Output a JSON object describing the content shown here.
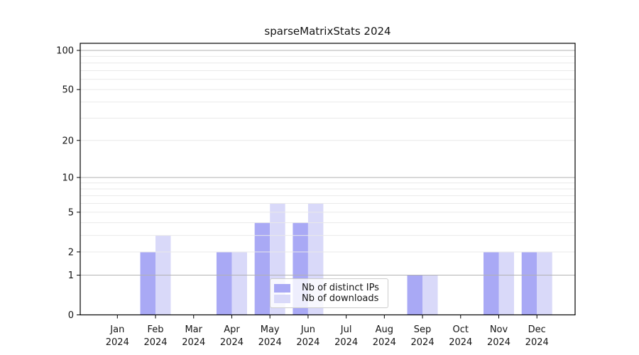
{
  "title": "sparseMatrixStats 2024",
  "chart_data": {
    "type": "bar",
    "title": "sparseMatrixStats 2024",
    "y_scale": "log10(1+x)",
    "categories": [
      "Jan",
      "Feb",
      "Mar",
      "Apr",
      "May",
      "Jun",
      "Jul",
      "Aug",
      "Sep",
      "Oct",
      "Nov",
      "Dec"
    ],
    "category_year": "2024",
    "series": [
      {
        "name": "Nb of distinct IPs",
        "color": "#a9a9f5",
        "values": [
          0,
          2,
          0,
          2,
          4,
          4,
          0,
          0,
          1,
          0,
          2,
          2
        ]
      },
      {
        "name": "Nb of downloads",
        "color": "#d9d9f9",
        "values": [
          0,
          3,
          0,
          2,
          6,
          6,
          0,
          0,
          1,
          0,
          2,
          2
        ]
      }
    ],
    "y_ticks": [
      0,
      1,
      2,
      5,
      10,
      20,
      50,
      100
    ],
    "y_major_grid": [
      1,
      10,
      100
    ],
    "y_minor_grid": [
      2,
      3,
      4,
      5,
      6,
      7,
      8,
      9,
      20,
      30,
      40,
      50,
      60,
      70,
      80,
      90
    ],
    "ylim": [
      0,
      113
    ],
    "grid": true,
    "legend_position": "lower center"
  },
  "colors": {
    "background": "#ffffff",
    "axis": "#000000",
    "tick_label": "#141414",
    "major_grid": "#b2b2b2",
    "minor_grid": "#e9e9e9",
    "legend_border": "#cccccc"
  }
}
